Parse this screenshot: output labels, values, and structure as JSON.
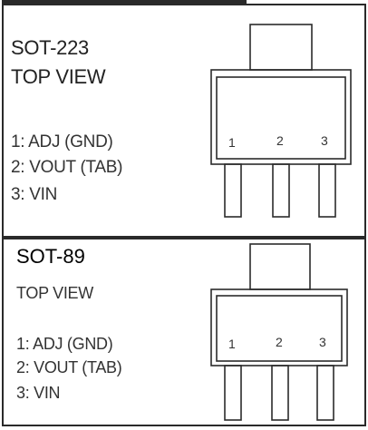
{
  "packages": [
    {
      "name": "SOT-223",
      "view": "TOP VIEW",
      "pins": [
        "1: ADJ (GND)",
        "2: VOUT (TAB)",
        "3: VIN"
      ],
      "pin_numbers": [
        "1",
        "2",
        "3"
      ]
    },
    {
      "name": "SOT-89",
      "view": "TOP VIEW",
      "pins": [
        "1: ADJ (GND)",
        "2: VOUT (TAB)",
        "3: VIN"
      ],
      "pin_numbers": [
        "1",
        "2",
        "3"
      ]
    }
  ]
}
